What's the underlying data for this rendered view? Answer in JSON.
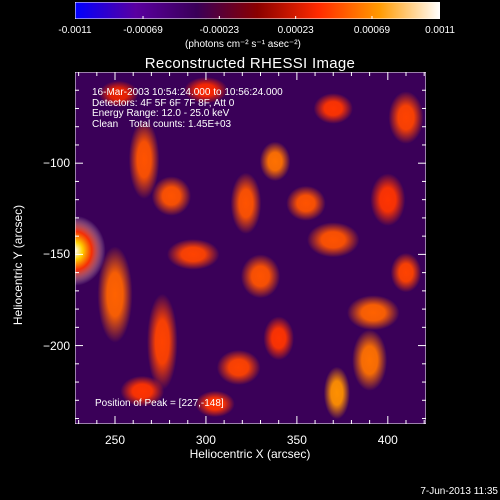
{
  "chart_data": {
    "type": "heatmap",
    "title": "Reconstructed RHESSI Image",
    "xlabel": "Heliocentric X (arcsec)",
    "ylabel": "Heliocentric Y (arcsec)",
    "xlim": [
      228,
      421
    ],
    "ylim": [
      -243,
      -50
    ],
    "x_ticks": [
      "250",
      "300",
      "350",
      "400"
    ],
    "y_ticks": [
      "-100",
      "-150",
      "-200"
    ],
    "x_tick_values": [
      250,
      300,
      350,
      400
    ],
    "y_tick_values": [
      -100,
      -150,
      -200
    ],
    "colorbar": {
      "range": [
        -0.0011,
        0.0011
      ],
      "tick_labels": [
        "-0.0011",
        "-0.00069",
        "-0.00023",
        "0.00023",
        "0.00069",
        "0.0011"
      ],
      "tick_values": [
        -0.0011,
        -0.00069,
        -0.00023,
        0.00023,
        0.00069,
        0.0011
      ],
      "unit_label": "(photons cm⁻² s⁻¹ asec⁻²)",
      "colors": [
        "#0000ff",
        "#5a00a0",
        "#3a0058",
        "#8a0000",
        "#ff2a00",
        "#ff9a00",
        "#ffffff"
      ]
    },
    "annotations": {
      "time_range": "16-Mar-2003 10:54:24.000 to 10:56:24.000",
      "detectors": "Detectors: 4F 5F 6F 7F 8F, Att 0",
      "energy_range": "Energy Range: 12.0 - 25.0 keV",
      "method": "Clean    Total counts: 1.45E+03",
      "peak": "Position of Peak = [227,-148]"
    },
    "peak_position": [
      227,
      -148
    ],
    "blobs": [
      {
        "x": 228,
        "y": -148,
        "value": 0.0011,
        "rx": 14,
        "ry": 16
      },
      {
        "x": 250,
        "y": -172,
        "value": 0.00055,
        "rx": 8,
        "ry": 22
      },
      {
        "x": 266,
        "y": -98,
        "value": 0.0005,
        "rx": 7,
        "ry": 18
      },
      {
        "x": 281,
        "y": -118,
        "value": 0.0005,
        "rx": 9,
        "ry": 9
      },
      {
        "x": 293,
        "y": -150,
        "value": 0.00045,
        "rx": 12,
        "ry": 7
      },
      {
        "x": 276,
        "y": -198,
        "value": 0.00045,
        "rx": 7,
        "ry": 22
      },
      {
        "x": 322,
        "y": -122,
        "value": 0.0005,
        "rx": 7,
        "ry": 14
      },
      {
        "x": 338,
        "y": -99,
        "value": 0.0006,
        "rx": 7,
        "ry": 9
      },
      {
        "x": 355,
        "y": -122,
        "value": 0.0005,
        "rx": 9,
        "ry": 8
      },
      {
        "x": 330,
        "y": -162,
        "value": 0.0005,
        "rx": 9,
        "ry": 10
      },
      {
        "x": 370,
        "y": -142,
        "value": 0.0005,
        "rx": 12,
        "ry": 8
      },
      {
        "x": 392,
        "y": -182,
        "value": 0.00055,
        "rx": 12,
        "ry": 8
      },
      {
        "x": 400,
        "y": -120,
        "value": 0.0004,
        "rx": 8,
        "ry": 12
      },
      {
        "x": 390,
        "y": -208,
        "value": 0.0006,
        "rx": 8,
        "ry": 14
      },
      {
        "x": 372,
        "y": -226,
        "value": 0.0007,
        "rx": 6,
        "ry": 12
      },
      {
        "x": 318,
        "y": -212,
        "value": 0.00045,
        "rx": 10,
        "ry": 8
      },
      {
        "x": 340,
        "y": -196,
        "value": 0.0004,
        "rx": 7,
        "ry": 10
      },
      {
        "x": 265,
        "y": -225,
        "value": 0.0004,
        "rx": 10,
        "ry": 7
      },
      {
        "x": 305,
        "y": -232,
        "value": 0.0004,
        "rx": 9,
        "ry": 6
      },
      {
        "x": 410,
        "y": -75,
        "value": 0.00045,
        "rx": 8,
        "ry": 12
      },
      {
        "x": 300,
        "y": -60,
        "value": 0.00035,
        "rx": 10,
        "ry": 6
      },
      {
        "x": 370,
        "y": -70,
        "value": 0.0004,
        "rx": 9,
        "ry": 7
      },
      {
        "x": 252,
        "y": -62,
        "value": 0.0003,
        "rx": 9,
        "ry": 6
      },
      {
        "x": 410,
        "y": -160,
        "value": 0.00045,
        "rx": 7,
        "ry": 9
      }
    ]
  },
  "footer": {
    "timestamp": "7-Jun-2013 11:35"
  }
}
